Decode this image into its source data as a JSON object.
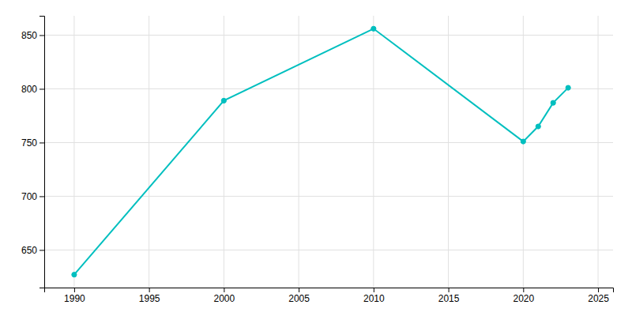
{
  "chart_data": {
    "type": "line",
    "x": [
      1990,
      2000,
      2010,
      2020,
      2021,
      2022,
      2023
    ],
    "values": [
      627,
      789,
      856,
      751,
      765,
      787,
      801
    ],
    "color": "#00BFBF",
    "marker": "circle",
    "xlim": [
      1988,
      2026
    ],
    "ylim": [
      615,
      868
    ],
    "xticks": [
      1990,
      1995,
      2000,
      2005,
      2010,
      2015,
      2020,
      2025
    ],
    "yticks": [
      650,
      700,
      750,
      800,
      850
    ],
    "grid": true
  }
}
